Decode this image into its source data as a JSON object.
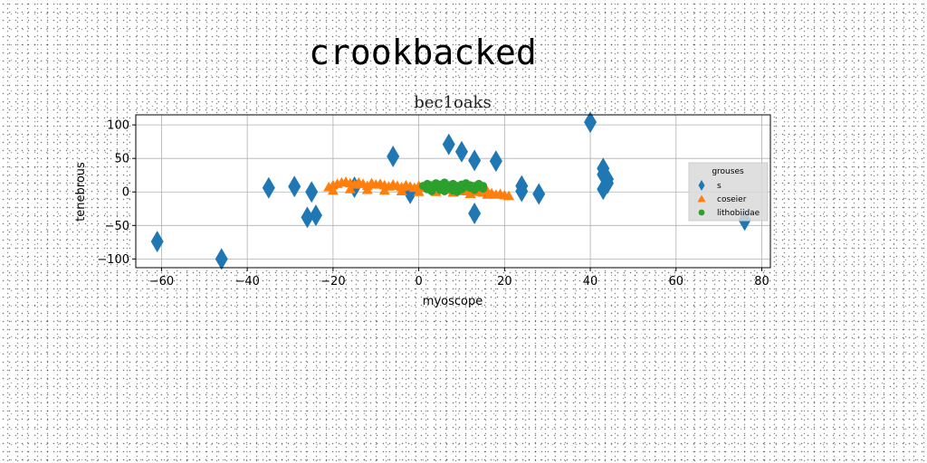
{
  "suptitle": "crookbacked",
  "chart_data": {
    "type": "scatter",
    "title": "bec1oaks",
    "xlabel": "myoscope",
    "ylabel": "tenebrous",
    "xlim": [
      -66,
      82
    ],
    "ylim": [
      -113,
      115
    ],
    "xticks": [
      -60,
      -40,
      -20,
      0,
      20,
      40,
      60,
      80
    ],
    "yticks": [
      -100,
      -50,
      0,
      50,
      100
    ],
    "grid": true,
    "legend": {
      "title": "grouses",
      "placement": "right"
    },
    "series": [
      {
        "name": "s",
        "marker": "diamond",
        "color": "#1f77b4",
        "points": [
          [
            -61,
            -74
          ],
          [
            -46,
            -100
          ],
          [
            -35,
            6
          ],
          [
            -29,
            8
          ],
          [
            -26,
            -38
          ],
          [
            -25,
            0
          ],
          [
            -24,
            -35
          ],
          [
            -15,
            7
          ],
          [
            -6,
            53
          ],
          [
            -2,
            -2
          ],
          [
            7,
            71
          ],
          [
            10,
            60
          ],
          [
            13,
            47
          ],
          [
            13,
            -32
          ],
          [
            18,
            46
          ],
          [
            24,
            9
          ],
          [
            24,
            1
          ],
          [
            28,
            -3
          ],
          [
            40,
            104
          ],
          [
            43,
            35
          ],
          [
            43,
            26
          ],
          [
            44,
            19
          ],
          [
            44,
            13
          ],
          [
            43,
            4
          ],
          [
            76,
            -42
          ]
        ]
      },
      {
        "name": "coseier",
        "marker": "triangle",
        "color": "#ff7f0e",
        "points": [
          [
            -21,
            7
          ],
          [
            -20,
            10
          ],
          [
            -19,
            12
          ],
          [
            -18,
            14
          ],
          [
            -17,
            15
          ],
          [
            -16,
            13
          ],
          [
            -15,
            11
          ],
          [
            -14,
            14
          ],
          [
            -13,
            12
          ],
          [
            -12,
            9
          ],
          [
            -11,
            13
          ],
          [
            -10,
            11
          ],
          [
            -9,
            12
          ],
          [
            -8,
            10
          ],
          [
            -7,
            8
          ],
          [
            -6,
            11
          ],
          [
            -5,
            9
          ],
          [
            -4,
            7
          ],
          [
            -3,
            10
          ],
          [
            -2,
            8
          ],
          [
            -1,
            6
          ],
          [
            0,
            9
          ],
          [
            1,
            6
          ],
          [
            2,
            8
          ],
          [
            3,
            5
          ],
          [
            4,
            7
          ],
          [
            5,
            4
          ],
          [
            6,
            6
          ],
          [
            7,
            3
          ],
          [
            8,
            5
          ],
          [
            9,
            2
          ],
          [
            10,
            4
          ],
          [
            11,
            1
          ],
          [
            12,
            3
          ],
          [
            13,
            0
          ],
          [
            14,
            2
          ],
          [
            15,
            -1
          ],
          [
            16,
            1
          ],
          [
            17,
            -2
          ],
          [
            18,
            -4
          ],
          [
            19,
            -3
          ],
          [
            20,
            -5
          ],
          [
            21,
            -6
          ],
          [
            -20,
            2
          ],
          [
            -16,
            4
          ],
          [
            -12,
            3
          ],
          [
            -8,
            2
          ],
          [
            -4,
            1
          ],
          [
            0,
            0
          ],
          [
            4,
            0
          ],
          [
            8,
            -1
          ],
          [
            12,
            -3
          ],
          [
            16,
            -4
          ]
        ]
      },
      {
        "name": "lithobiidae",
        "marker": "circle",
        "color": "#2ca02c",
        "points": [
          [
            1,
            9
          ],
          [
            2,
            12
          ],
          [
            2,
            4
          ],
          [
            3,
            10
          ],
          [
            3,
            5
          ],
          [
            4,
            13
          ],
          [
            4,
            7
          ],
          [
            5,
            3
          ],
          [
            5,
            11
          ],
          [
            6,
            8
          ],
          [
            6,
            14
          ],
          [
            7,
            5
          ],
          [
            7,
            10
          ],
          [
            8,
            12
          ],
          [
            8,
            2
          ],
          [
            9,
            9
          ],
          [
            9,
            6
          ],
          [
            10,
            11
          ],
          [
            10,
            4
          ],
          [
            11,
            8
          ],
          [
            11,
            13
          ],
          [
            12,
            6
          ],
          [
            12,
            10
          ],
          [
            13,
            3
          ],
          [
            13,
            9
          ],
          [
            14,
            7
          ],
          [
            14,
            12
          ],
          [
            15,
            5
          ],
          [
            15,
            9
          ],
          [
            3,
            1
          ],
          [
            6,
            1
          ],
          [
            9,
            0
          ]
        ]
      }
    ]
  }
}
